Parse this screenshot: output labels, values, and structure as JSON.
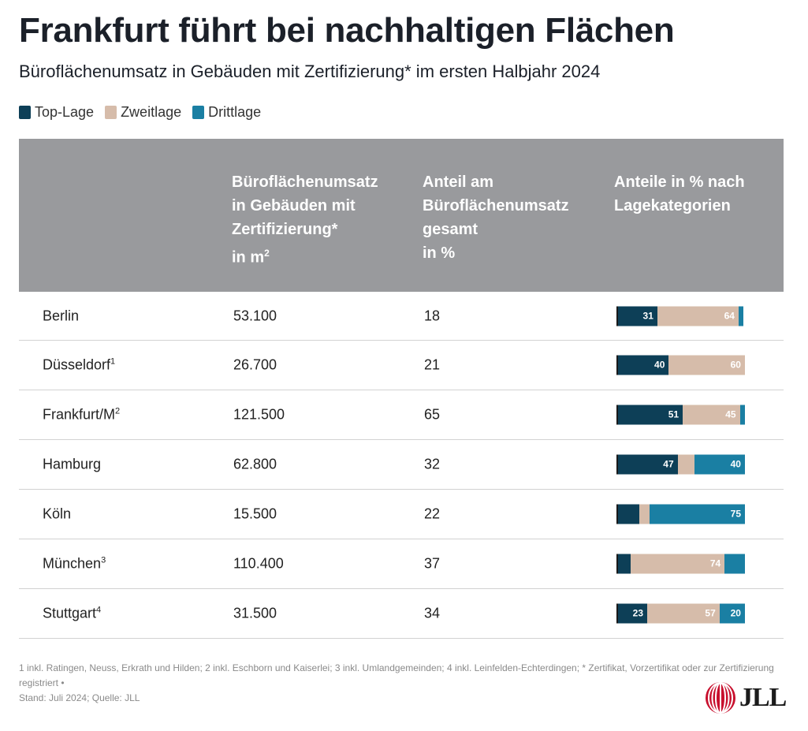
{
  "header": {
    "title": "Frankfurt führt bei nachhaltigen Flächen",
    "subtitle": "Büroflächenumsatz in Gebäuden mit Zertifizierung* im ersten Halbjahr 2024"
  },
  "legend": [
    {
      "label": "Top-Lage",
      "color": "#0d3f57"
    },
    {
      "label": "Zweitlage",
      "color": "#d6bcaa"
    },
    {
      "label": "Drittlage",
      "color": "#1a7fa3"
    }
  ],
  "table": {
    "headers": {
      "area_main": "Büroflächenumsatz\nin Gebäuden mit\nZertifizierung*\nin m",
      "area_sup": "2",
      "share": "Anteil am\nBüroflächenumsatz\ngesamt\nin %",
      "categories": "Anteile in % nach\nLagekategorien"
    }
  },
  "chart_data": {
    "type": "bar",
    "stacked": true,
    "orientation": "horizontal",
    "categories": [
      "Berlin",
      "Düsseldorf",
      "Frankfurt/M",
      "Hamburg",
      "Köln",
      "München",
      "Stuttgart"
    ],
    "category_footnotes": [
      "",
      "1",
      "2",
      "",
      "",
      "3",
      "4"
    ],
    "area_m2": [
      "53.100",
      "26.700",
      "121.500",
      "62.800",
      "15.500",
      "110.400",
      "31.500"
    ],
    "share_percent": [
      "18",
      "21",
      "65",
      "32",
      "22",
      "37",
      "34"
    ],
    "series": [
      {
        "name": "Top-Lage",
        "color": "#0d3f57",
        "values": [
          31,
          40,
          51,
          47,
          17,
          10,
          23
        ],
        "labels": [
          "31",
          "40",
          "51",
          "47",
          "",
          "",
          "23"
        ]
      },
      {
        "name": "Zweitlage",
        "color": "#d6bcaa",
        "values": [
          64,
          60,
          45,
          13,
          8,
          74,
          57
        ],
        "labels": [
          "64",
          "60",
          "45",
          "",
          "",
          "74",
          "57"
        ]
      },
      {
        "name": "Drittlage",
        "color": "#1a7fa3",
        "values": [
          4,
          0,
          4,
          40,
          75,
          16,
          20
        ],
        "labels": [
          "",
          "",
          "",
          "40",
          "75",
          "",
          "20"
        ]
      }
    ],
    "xlim": [
      0,
      100
    ]
  },
  "footnote": {
    "line1": "1 inkl. Ratingen, Neuss, Erkrath und Hilden; 2 inkl. Eschborn und Kaiserlei; 3 inkl. Umlandgemeinden; 4 inkl. Leinfelden-Echterdingen; * Zertifikat, Vorzertifikat oder zur Zertifizierung registriert •",
    "line2": "Stand: Juli 2024; Quelle: JLL"
  },
  "logo": {
    "text": "JLL",
    "color": "#c8102e"
  }
}
